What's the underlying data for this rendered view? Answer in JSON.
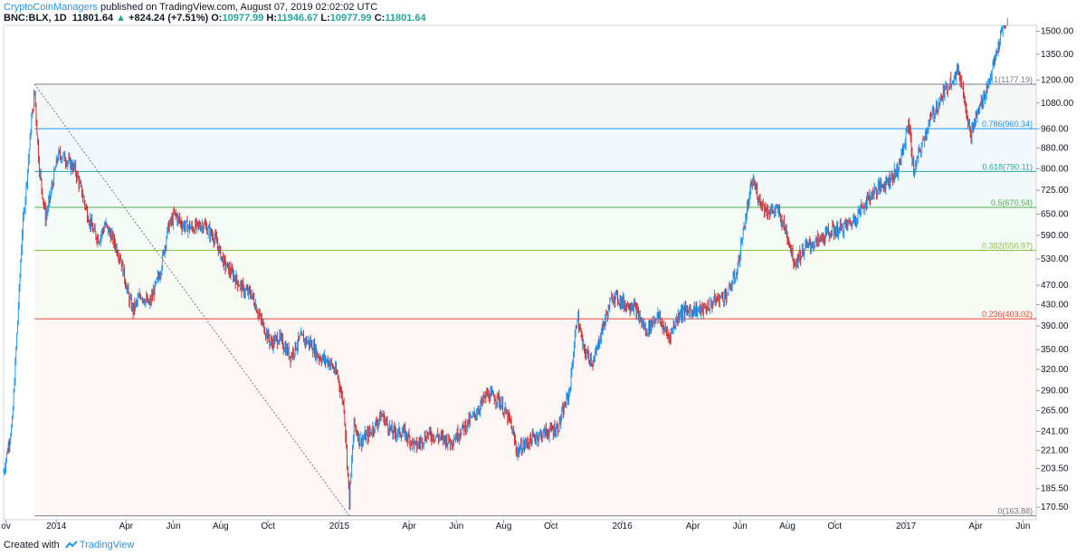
{
  "header": {
    "author": "CryptoCoinManagers",
    "published": "published on TradingView.com, August 07, 2019 02:02:02 UTC",
    "symbol": "BNC:BLX, 1D",
    "last": "11801.64",
    "arrow": "▲",
    "change": "+824.24 (+7.51%)",
    "o_label": "O:",
    "o_value": "10977.99",
    "h_label": "H:",
    "h_value": "11946.67",
    "l_label": "L:",
    "l_value": "10977.99",
    "c_label": "C:",
    "c_value": "11801.64"
  },
  "footer": {
    "created": "Created with",
    "brand": "TradingView"
  },
  "colors": {
    "up": "#26a69a",
    "down": "#ef5350",
    "up_candle": "#2196f3",
    "down_candle": "#d32f2f",
    "border": "#9598a1"
  },
  "chart_data": {
    "type": "line",
    "title": "",
    "scale": "log",
    "ylim": [
      161,
      1540
    ],
    "yticks": [
      1500,
      1350,
      1200,
      1080,
      960,
      880,
      800,
      725,
      650,
      590,
      530,
      470,
      430,
      390,
      350,
      320,
      290,
      265,
      241,
      221,
      203.5,
      185.5,
      170.5
    ],
    "ytick_labels": [
      "1500.00",
      "1350.00",
      "1200.00",
      "1080.00",
      "960.00",
      "880.00",
      "800.00",
      "725.00",
      "650.00",
      "590.00",
      "530.00",
      "470.00",
      "430.00",
      "390.00",
      "350.00",
      "320.00",
      "290.00",
      "265.00",
      "241.00",
      "221.00",
      "203.50",
      "185.50",
      "170.50"
    ],
    "xlim": [
      "2013-10-25",
      "2017-06-18"
    ],
    "xticks": [
      {
        "date": "2013-10-28",
        "label": "ov"
      },
      {
        "date": "2014-01-01",
        "label": "2014"
      },
      {
        "date": "2014-04-01",
        "label": "Apr"
      },
      {
        "date": "2014-06-01",
        "label": "Jun"
      },
      {
        "date": "2014-08-01",
        "label": "Aug"
      },
      {
        "date": "2014-10-01",
        "label": "Oct"
      },
      {
        "date": "2015-01-01",
        "label": "2015"
      },
      {
        "date": "2015-04-01",
        "label": "Apr"
      },
      {
        "date": "2015-06-01",
        "label": "Jun"
      },
      {
        "date": "2015-08-01",
        "label": "Aug"
      },
      {
        "date": "2015-10-01",
        "label": "Oct"
      },
      {
        "date": "2016-01-01",
        "label": "2016"
      },
      {
        "date": "2016-04-01",
        "label": "Apr"
      },
      {
        "date": "2016-06-01",
        "label": "Jun"
      },
      {
        "date": "2016-08-01",
        "label": "Aug"
      },
      {
        "date": "2016-10-01",
        "label": "Oct"
      },
      {
        "date": "2017-01-01",
        "label": "2017"
      },
      {
        "date": "2017-04-01",
        "label": "Apr"
      },
      {
        "date": "2017-06-01",
        "label": "Jun"
      }
    ],
    "fib_levels": [
      {
        "ratio": "1",
        "value": 1177.19,
        "label": "1(1177.19)",
        "color": "#787b86",
        "fill": "rgba(120,123,134,0.07)"
      },
      {
        "ratio": "0.786",
        "value": 960.34,
        "label": "0.786(960.34)",
        "color": "#2196f3",
        "fill": "rgba(33,150,243,0.06)"
      },
      {
        "ratio": "0.618",
        "value": 790.11,
        "label": "0.618(790.11)",
        "color": "#26a69a",
        "fill": "rgba(38,166,154,0.06)"
      },
      {
        "ratio": "0.5",
        "value": 670.54,
        "label": "0.5(670.54)",
        "color": "#4caf50",
        "fill": "rgba(76,175,80,0.06)"
      },
      {
        "ratio": "0.382",
        "value": 550.97,
        "label": "0.382(550.97)",
        "color": "#8bc34a",
        "fill": "rgba(139,195,74,0.06)"
      },
      {
        "ratio": "0.236",
        "value": 403.02,
        "label": "0.236(403.02)",
        "color": "#f44336",
        "fill": "rgba(244,67,54,0.05)"
      },
      {
        "ratio": "0",
        "value": 163.88,
        "label": "0(163.88)",
        "color": "#787b86",
        "fill": "rgba(0,0,0,0)"
      }
    ],
    "fib_start": "2013-12-04",
    "fib_end": "2015-01-14",
    "series": [
      {
        "x": [
          "2013-10-25",
          "2013-11-05",
          "2013-11-12",
          "2013-11-18",
          "2013-11-25",
          "2013-11-30",
          "2013-12-04",
          "2013-12-07",
          "2013-12-10",
          "2013-12-18",
          "2013-12-22",
          "2013-12-28",
          "2014-01-03",
          "2014-01-08",
          "2014-01-15",
          "2014-01-25",
          "2014-02-05",
          "2014-02-10",
          "2014-02-18",
          "2014-02-25",
          "2014-03-05",
          "2014-03-15",
          "2014-03-25",
          "2014-04-05",
          "2014-04-10",
          "2014-04-20",
          "2014-05-01",
          "2014-05-15",
          "2014-05-25",
          "2014-06-03",
          "2014-06-12",
          "2014-06-25",
          "2014-07-10",
          "2014-07-25",
          "2014-08-05",
          "2014-08-18",
          "2014-08-30",
          "2014-09-10",
          "2014-09-22",
          "2014-10-05",
          "2014-10-15",
          "2014-10-30",
          "2014-11-12",
          "2014-11-25",
          "2014-12-05",
          "2014-12-20",
          "2014-12-30",
          "2015-01-07",
          "2015-01-14",
          "2015-01-20",
          "2015-01-28",
          "2015-02-10",
          "2015-02-25",
          "2015-03-10",
          "2015-03-25",
          "2015-04-10",
          "2015-04-25",
          "2015-05-10",
          "2015-05-25",
          "2015-06-10",
          "2015-06-25",
          "2015-07-10",
          "2015-07-25",
          "2015-08-10",
          "2015-08-18",
          "2015-08-25",
          "2015-09-10",
          "2015-09-25",
          "2015-10-10",
          "2015-10-25",
          "2015-11-04",
          "2015-11-12",
          "2015-11-25",
          "2015-12-05",
          "2015-12-20",
          "2016-01-05",
          "2016-01-15",
          "2016-02-01",
          "2016-02-15",
          "2016-03-01",
          "2016-03-15",
          "2016-04-01",
          "2016-04-15",
          "2016-05-01",
          "2016-05-15",
          "2016-05-28",
          "2016-06-05",
          "2016-06-17",
          "2016-06-25",
          "2016-07-05",
          "2016-07-20",
          "2016-08-02",
          "2016-08-10",
          "2016-08-25",
          "2016-09-10",
          "2016-09-25",
          "2016-10-10",
          "2016-10-25",
          "2016-11-05",
          "2016-11-20",
          "2016-12-05",
          "2016-12-20",
          "2016-12-30",
          "2017-01-04",
          "2017-01-11",
          "2017-01-20",
          "2017-02-01",
          "2017-02-15",
          "2017-02-28",
          "2017-03-10",
          "2017-03-18",
          "2017-03-25",
          "2017-04-05",
          "2017-04-15",
          "2017-04-25",
          "2017-05-05",
          "2017-05-12"
        ],
        "values": [
          200,
          250,
          400,
          600,
          800,
          1000,
          1140,
          950,
          800,
          640,
          680,
          760,
          850,
          850,
          830,
          800,
          700,
          650,
          600,
          580,
          620,
          580,
          530,
          440,
          420,
          450,
          430,
          500,
          610,
          650,
          620,
          610,
          620,
          580,
          520,
          490,
          460,
          450,
          400,
          360,
          370,
          340,
          370,
          360,
          340,
          330,
          310,
          270,
          175,
          250,
          230,
          240,
          260,
          240,
          240,
          225,
          238,
          235,
          230,
          245,
          260,
          285,
          280,
          250,
          220,
          225,
          235,
          240,
          245,
          290,
          410,
          350,
          330,
          380,
          450,
          430,
          430,
          380,
          410,
          370,
          415,
          420,
          420,
          440,
          450,
          500,
          600,
          760,
          700,
          660,
          660,
          585,
          520,
          560,
          575,
          600,
          610,
          630,
          670,
          720,
          750,
          790,
          890,
          1000,
          790,
          880,
          1000,
          1100,
          1200,
          1250,
          1100,
          930,
          1050,
          1150,
          1300,
          1500,
          1600
        ]
      }
    ]
  }
}
